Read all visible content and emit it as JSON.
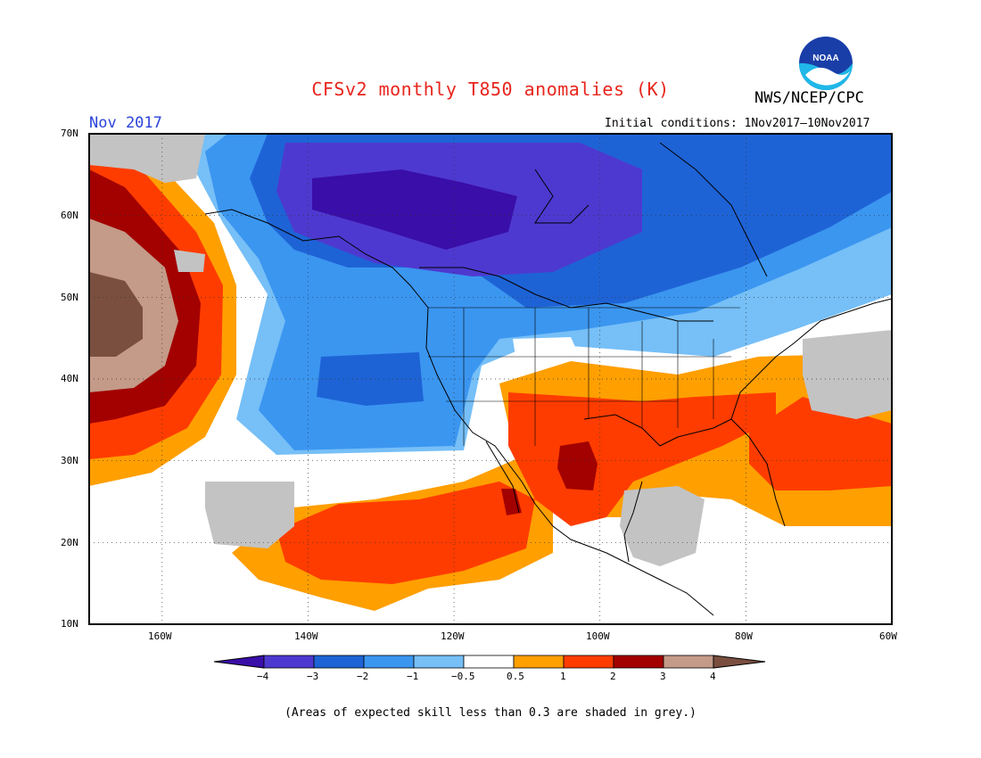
{
  "header": {
    "title": "CFSv2 monthly T850 anomalies (K)",
    "org": "NWS/NCEP/CPC",
    "logo_text": "NOAA",
    "month": "Nov 2017",
    "initial_conditions": "Initial conditions: 1Nov2017–10Nov2017"
  },
  "map": {
    "lat_labels": [
      "70N",
      "60N",
      "50N",
      "40N",
      "30N",
      "20N",
      "10N"
    ],
    "lon_labels": [
      "160W",
      "140W",
      "120W",
      "100W",
      "80W",
      "60W"
    ],
    "extent": {
      "lon_min": -171,
      "lon_max": -60,
      "lat_min": 10,
      "lat_max": 70
    },
    "gridlines": "dotted",
    "colors": {
      "lt_neg4": "#3a0ea8",
      "neg4_neg3": "#4e39d0",
      "neg3_neg2": "#1e63d6",
      "neg2_neg1": "#3b96f0",
      "neg1_neg05": "#76bff7",
      "neutral": "#ffffff",
      "p05_1": "#ff9f00",
      "p1_2": "#ff3c00",
      "p2_3": "#a30000",
      "p3_4": "#c49a88",
      "gt4": "#7a4f40",
      "low_skill": "#c3c3c3"
    }
  },
  "colorbar": {
    "labels": [
      "−4",
      "−3",
      "−2",
      "−1",
      "−0.5",
      "0.5",
      "1",
      "2",
      "3",
      "4"
    ],
    "colors": [
      "#3a0ea8",
      "#4e39d0",
      "#1e63d6",
      "#3b96f0",
      "#76bff7",
      "#ffffff",
      "#ff9f00",
      "#ff3c00",
      "#a30000",
      "#c49a88",
      "#7a4f40"
    ]
  },
  "footer": {
    "note": "(Areas of expected skill less than 0.3 are shaded in grey.)"
  }
}
